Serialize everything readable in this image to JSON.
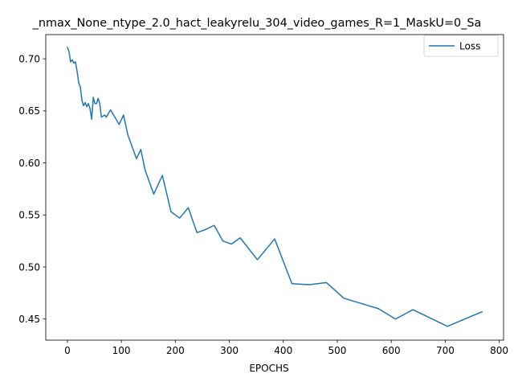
{
  "chart_data": {
    "type": "line",
    "title": "_nmax_None_ntype_2.0_hact_leakyrelu_304_video_games_R=1_MaskU=0_Sa",
    "xlabel": "EPOCHS",
    "ylabel": "",
    "xlim": [
      -40,
      808
    ],
    "ylim": [
      0.4297,
      0.7233
    ],
    "xticks": [
      0,
      100,
      200,
      300,
      400,
      500,
      600,
      700,
      800
    ],
    "yticks": [
      0.45,
      0.5,
      0.55,
      0.6,
      0.65,
      0.7
    ],
    "ytick_labels": [
      "0.45",
      "0.50",
      "0.55",
      "0.60",
      "0.65",
      "0.70"
    ],
    "grid": false,
    "legend": "top-right",
    "series": [
      {
        "name": "Loss",
        "color": "#1f77b4",
        "x": [
          0,
          3,
          6,
          9,
          12,
          15,
          18,
          21,
          24,
          27,
          30,
          33,
          36,
          39,
          42,
          45,
          48,
          51,
          54,
          57,
          60,
          63,
          66,
          69,
          72,
          80,
          96,
          104,
          112,
          128,
          136,
          144,
          160,
          176,
          192,
          208,
          224,
          240,
          256,
          272,
          288,
          304,
          320,
          352,
          384,
          416,
          448,
          480,
          512,
          544,
          576,
          608,
          640,
          704,
          768
        ],
        "y": [
          0.711,
          0.707,
          0.697,
          0.699,
          0.696,
          0.697,
          0.688,
          0.677,
          0.673,
          0.66,
          0.655,
          0.658,
          0.654,
          0.657,
          0.652,
          0.642,
          0.663,
          0.657,
          0.657,
          0.662,
          0.657,
          0.644,
          0.645,
          0.646,
          0.644,
          0.651,
          0.637,
          0.646,
          0.627,
          0.604,
          0.613,
          0.593,
          0.57,
          0.588,
          0.553,
          0.547,
          0.557,
          0.533,
          0.536,
          0.54,
          0.525,
          0.522,
          0.528,
          0.507,
          0.527,
          0.484,
          0.483,
          0.485,
          0.47,
          0.465,
          0.46,
          0.45,
          0.459,
          0.443,
          0.457
        ]
      }
    ]
  }
}
